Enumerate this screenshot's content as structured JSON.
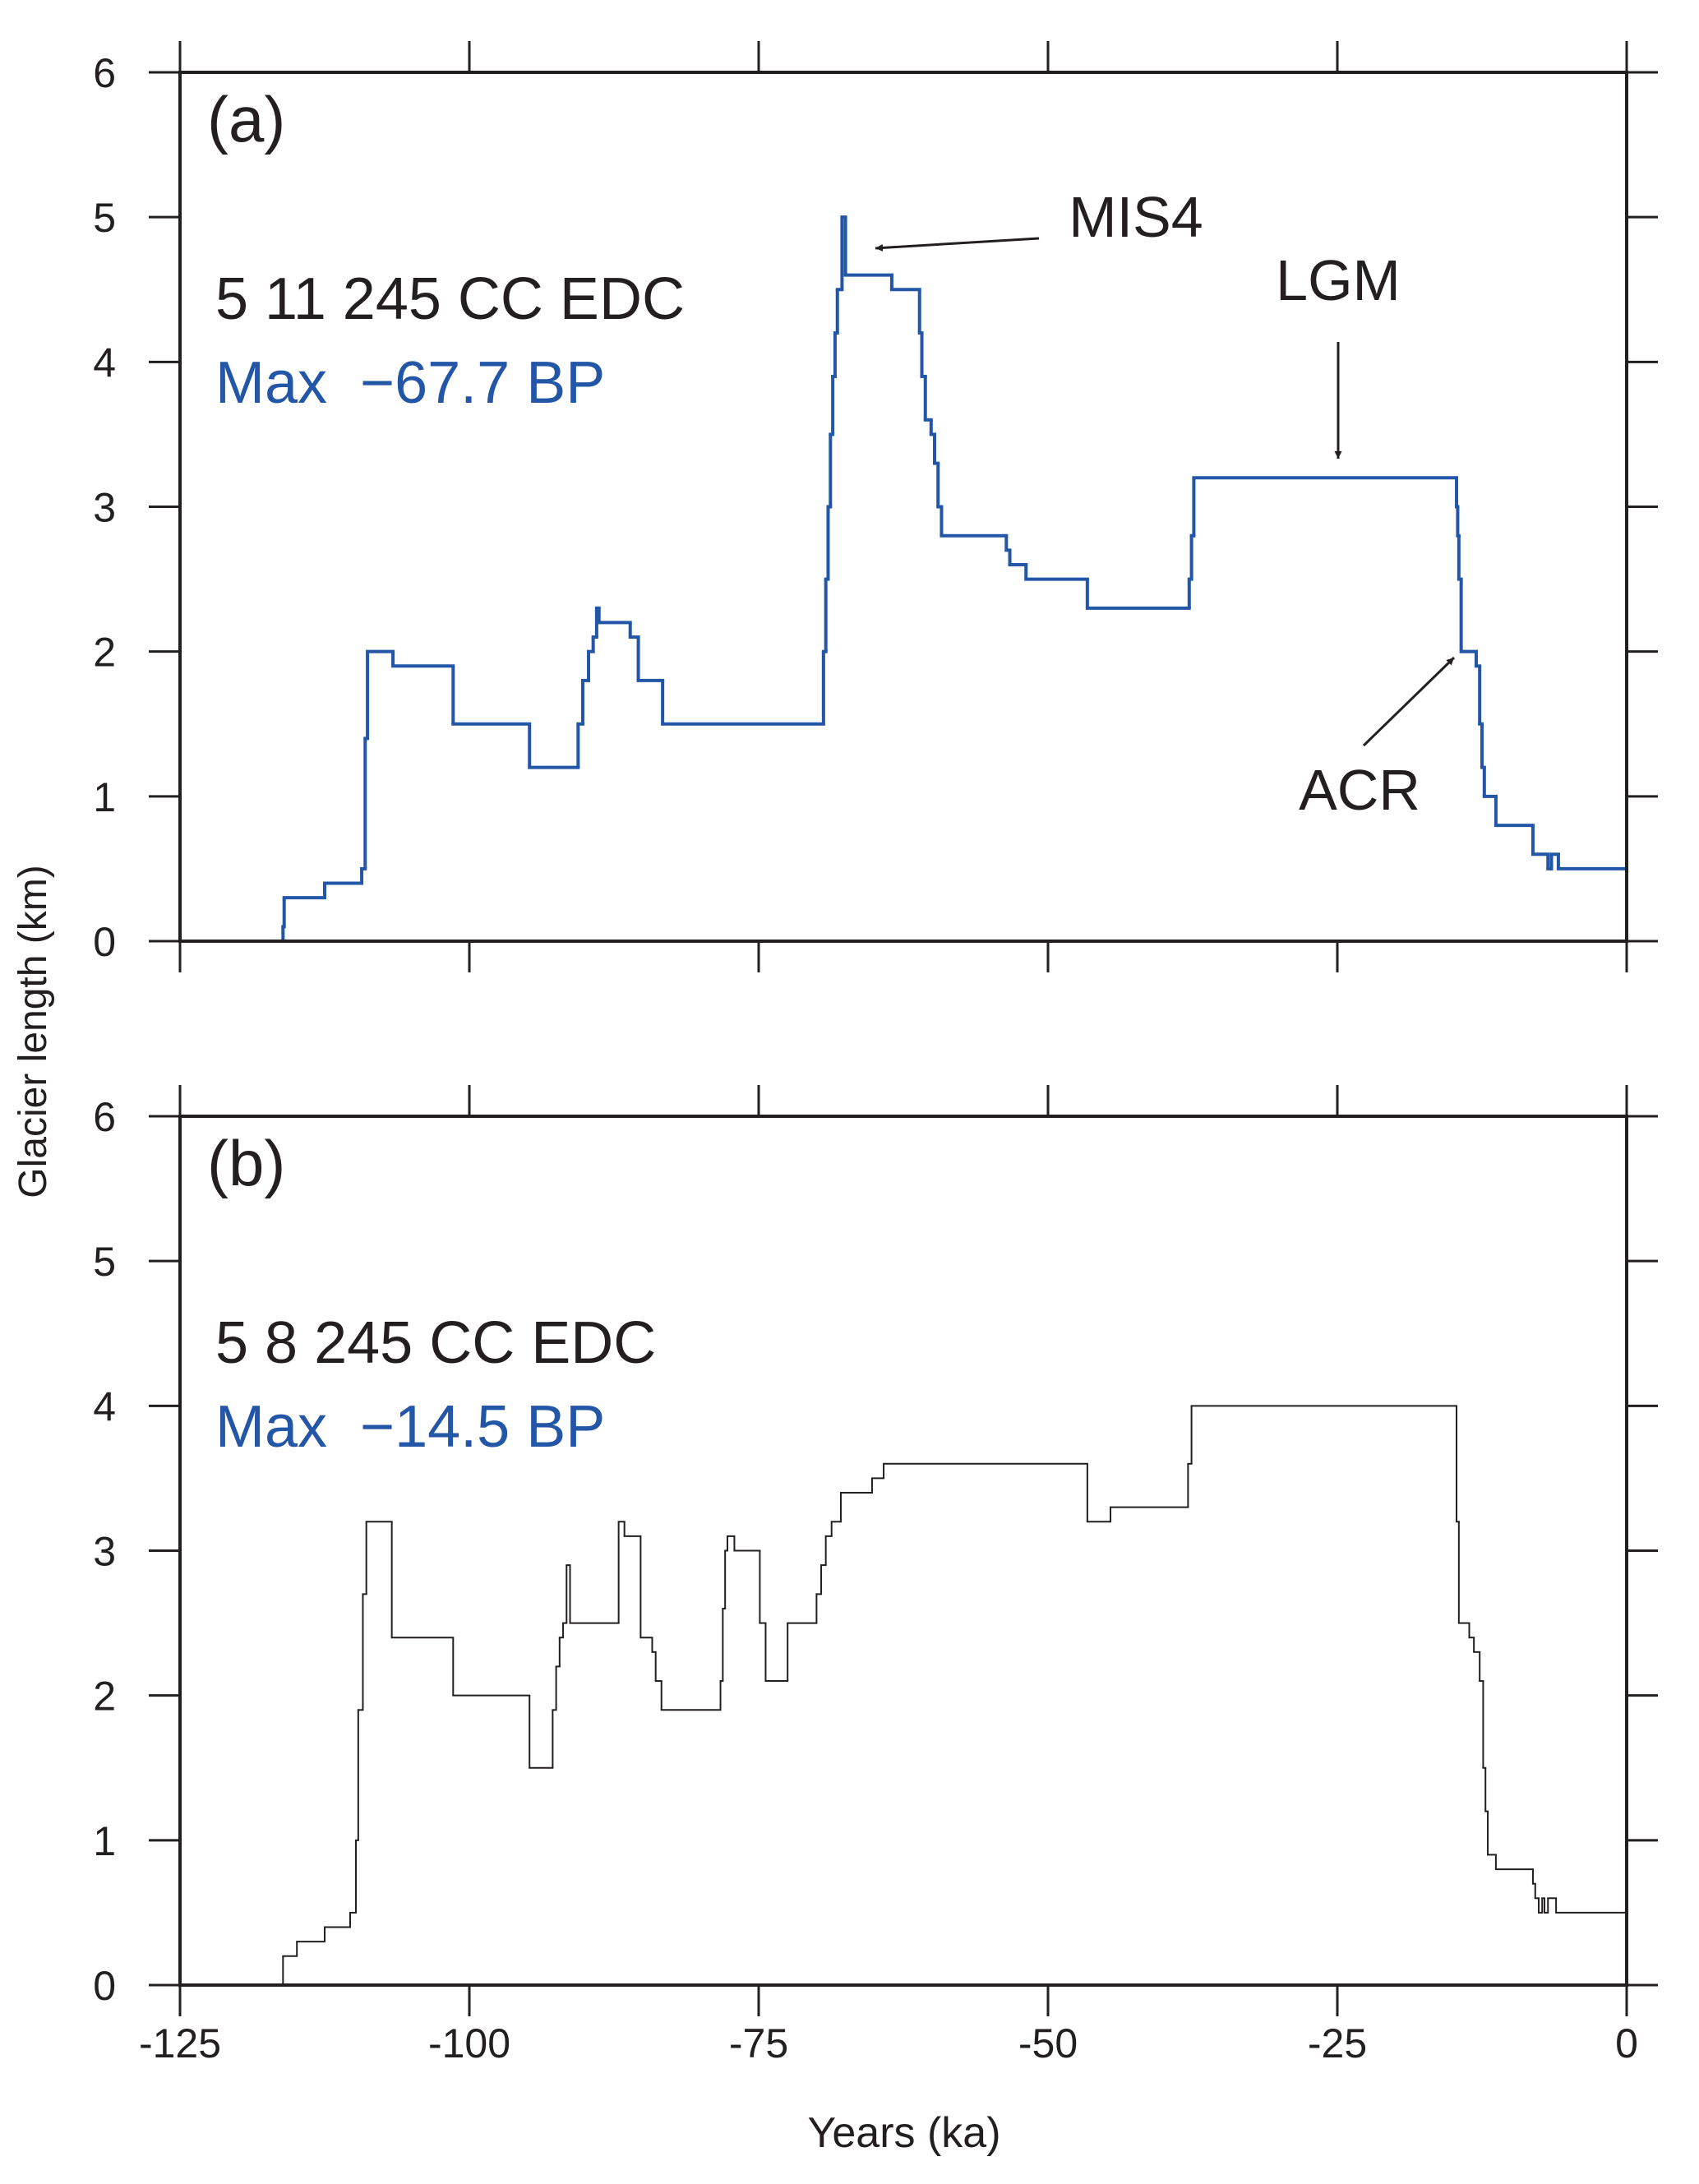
{
  "chart_data": [
    {
      "type": "step",
      "panel_label": "(a)",
      "run_label": "5 11 245 CC EDC",
      "max_label": "Max  −67.7 BP",
      "ylabel": "Glacier length (km)",
      "annotations": [
        "MIS4",
        "LGM",
        "ACR"
      ],
      "xlim": [
        -125,
        0
      ],
      "xticks": [
        -125,
        -100,
        -75,
        -50,
        -25,
        0
      ],
      "ylim": [
        0,
        6
      ],
      "yticks": [
        0,
        1,
        2,
        3,
        4,
        5,
        6
      ],
      "label_color": "#2356a6",
      "series": [
        {
          "color": "#2356a6",
          "x": [
            -125,
            -116.1,
            -116,
            -112.5,
            -109.3,
            -109,
            -108.8,
            -106.6,
            -101.4,
            -94.8,
            -90.6,
            -90.2,
            -89.7,
            -89.3,
            -89,
            -88.8,
            -86.1,
            -85.4,
            -83.3,
            -69.4,
            -69.2,
            -69,
            -68.8,
            -68.6,
            -68.4,
            -68.2,
            -67.8,
            -67.5,
            -63.5,
            -61.1,
            -60.9,
            -60.6,
            -60.1,
            -59.8,
            -59.5,
            -59.2,
            -53.6,
            -53.3,
            -51.9,
            -46.6,
            -37.8,
            -37.6,
            -37.4,
            -14.7,
            -14.6,
            -14.5,
            -14.3,
            -13,
            -12.7,
            -12.5,
            -12.3,
            -11.3,
            -8.1,
            -6.8,
            -6.5,
            -5.9
          ],
          "values": [
            0,
            0.1,
            0.3,
            0.4,
            0.5,
            1.4,
            2.0,
            1.9,
            1.5,
            1.2,
            1.5,
            1.8,
            2.0,
            2.1,
            2.3,
            2.2,
            2.1,
            1.8,
            1.5,
            2.0,
            2.5,
            3.0,
            3.5,
            3.9,
            4.2,
            4.5,
            5.0,
            4.6,
            4.5,
            4.2,
            3.9,
            3.6,
            3.5,
            3.3,
            3.0,
            2.8,
            2.7,
            2.6,
            2.5,
            2.3,
            2.5,
            2.8,
            3.2,
            3.0,
            2.8,
            2.5,
            2.0,
            1.9,
            1.5,
            1.2,
            1.0,
            0.8,
            0.6,
            0.5,
            0.6,
            0.5
          ]
        }
      ]
    },
    {
      "type": "step",
      "panel_label": "(b)",
      "run_label": "5 8 245 CC EDC",
      "max_label": "Max  −14.5 BP",
      "xlabel": "Years (ka)",
      "xlim": [
        -125,
        0
      ],
      "xticks": [
        -125,
        -100,
        -75,
        -50,
        -25,
        0
      ],
      "ylim": [
        0,
        6
      ],
      "yticks": [
        0,
        1,
        2,
        3,
        4,
        5,
        6
      ],
      "label_color": "#2356a6",
      "series": [
        {
          "color": "#231f20",
          "x": [
            -125,
            -116.1,
            -114.9,
            -112.5,
            -110.3,
            -109.8,
            -109.6,
            -109.2,
            -108.9,
            -106.7,
            -101.4,
            -94.8,
            -92.8,
            -92.5,
            -92.2,
            -91.9,
            -91.6,
            -91.3,
            -87.1,
            -86.6,
            -85.2,
            -84.2,
            -83.9,
            -83.4,
            -78.3,
            -78.1,
            -77.9,
            -77.7,
            -77.1,
            -74.9,
            -74.4,
            -72.5,
            -70,
            -69.6,
            -69.2,
            -68.7,
            -67.9,
            -65.2,
            -64.2,
            -46.6,
            -44.6,
            -37.9,
            -37.6,
            -14.7,
            -14.5,
            -13.6,
            -13.2,
            -12.7,
            -12.4,
            -12.2,
            -12,
            -11.3,
            -8.1,
            -7.9,
            -7.6,
            -7.3,
            -7.1,
            -6.8,
            -6.1
          ],
          "values": [
            0,
            0.2,
            0.3,
            0.4,
            0.5,
            1.0,
            1.9,
            2.7,
            3.2,
            2.4,
            2.0,
            1.5,
            1.9,
            2.2,
            2.4,
            2.5,
            2.9,
            2.5,
            3.2,
            3.1,
            2.4,
            2.3,
            2.1,
            1.9,
            2.1,
            2.6,
            3.0,
            3.1,
            3.0,
            2.5,
            2.1,
            2.5,
            2.7,
            2.9,
            3.1,
            3.2,
            3.4,
            3.5,
            3.6,
            3.2,
            3.3,
            3.6,
            4.0,
            3.2,
            2.5,
            2.4,
            2.3,
            2.1,
            1.5,
            1.2,
            0.9,
            0.8,
            0.7,
            0.6,
            0.5,
            0.6,
            0.5,
            0.6,
            0.5
          ]
        }
      ]
    }
  ]
}
